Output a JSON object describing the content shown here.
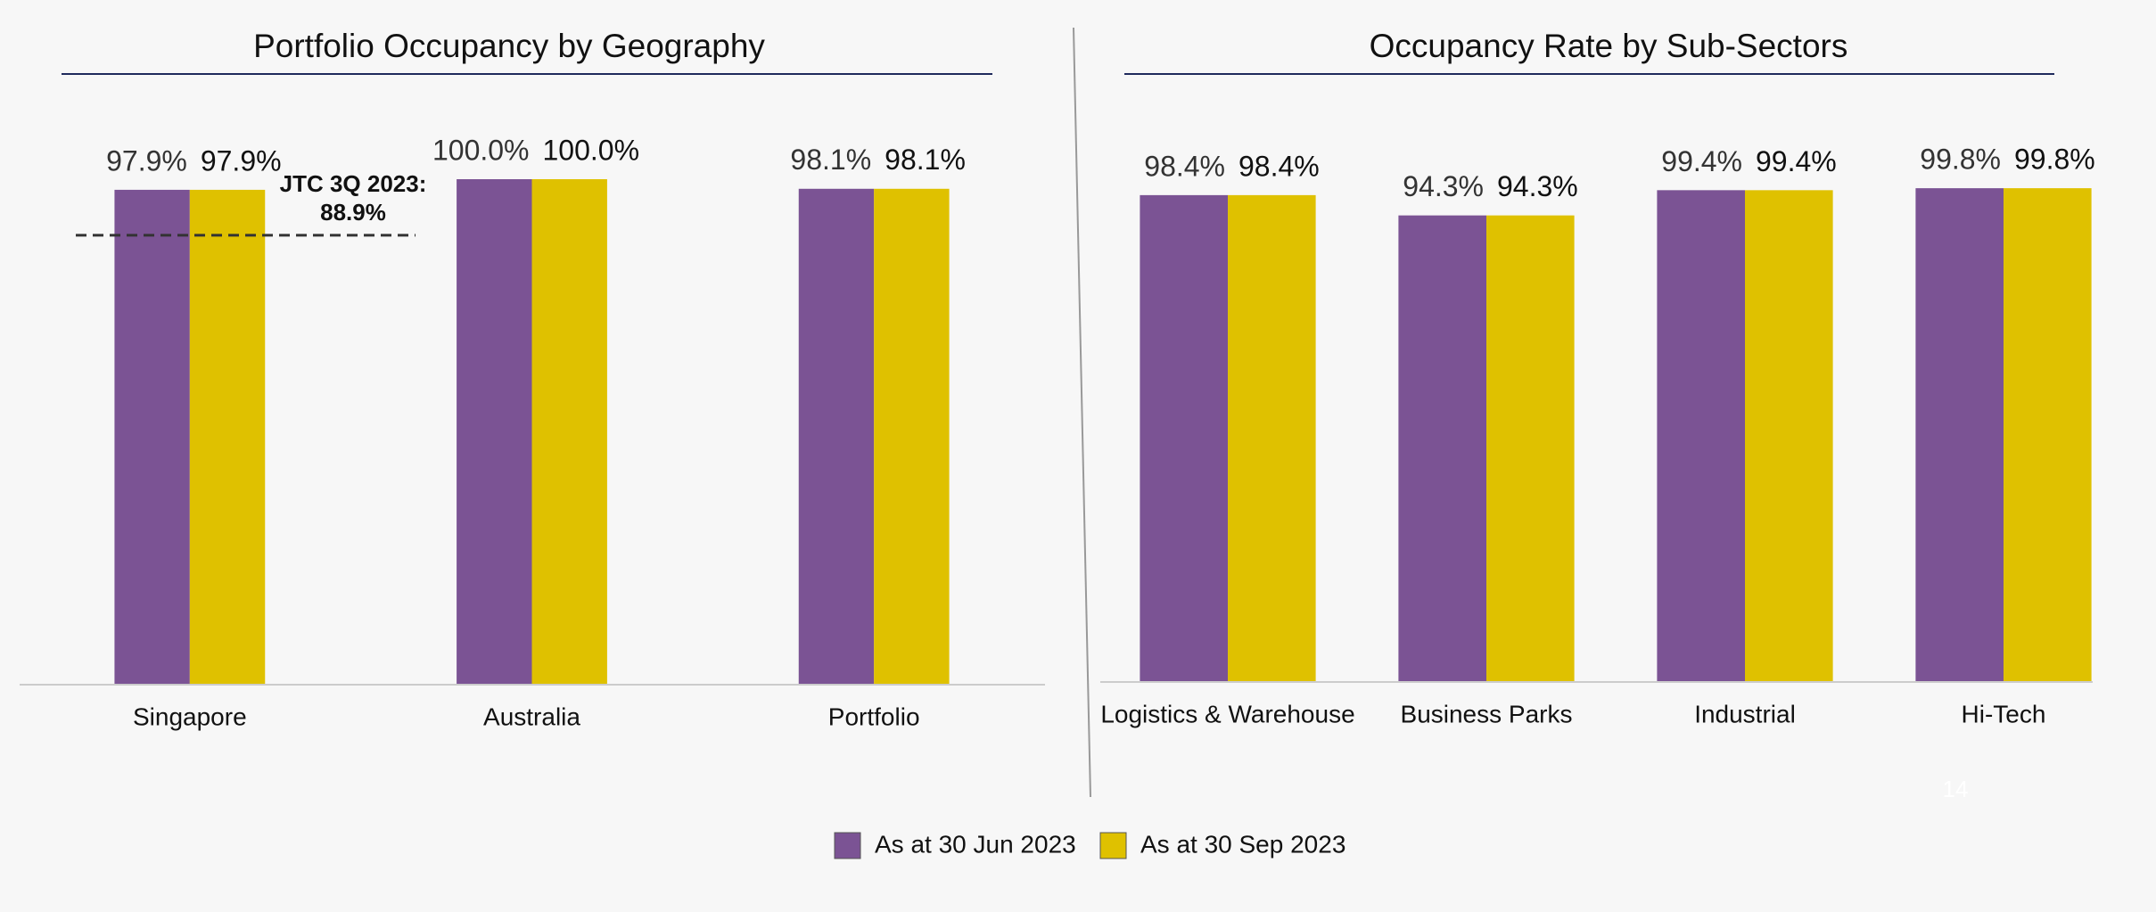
{
  "chart_data": [
    {
      "type": "bar",
      "title": "Portfolio Occupancy by Geography",
      "categories": [
        "Singapore",
        "Australia",
        "Portfolio"
      ],
      "series": [
        {
          "name": "As at 30 Jun 2023",
          "color": "#7b5394",
          "values": [
            97.9,
            100.0,
            98.1
          ],
          "value_labels": [
            "97.9%",
            "100.0%",
            "98.1%"
          ]
        },
        {
          "name": "As at 30 Sep 2023",
          "color": "#dfc100",
          "values": [
            97.9,
            100.0,
            98.1
          ],
          "value_labels": [
            "97.9%",
            "100.0%",
            "98.1%"
          ]
        }
      ],
      "ylim": [
        0,
        100
      ],
      "annotation": {
        "text": "JTC 3Q 2023:",
        "value": 88.9,
        "label": "88.9%"
      }
    },
    {
      "type": "bar",
      "title": "Occupancy Rate by Sub-Sectors",
      "categories": [
        "Logistics & Warehouse",
        "Business Parks",
        "Industrial",
        "Hi-Tech"
      ],
      "series": [
        {
          "color": "#7b5394",
          "values": [
            98.4,
            94.3,
            99.4,
            99.8
          ],
          "value_labels": [
            "98.4%",
            "94.3%",
            "99.4%",
            "99.8%"
          ]
        },
        {
          "color": "#dfc100",
          "values": [
            98.4,
            94.3,
            99.4,
            99.8
          ],
          "value_labels": [
            "98.4%",
            "94.3%",
            "99.4%",
            "99.8%"
          ]
        }
      ],
      "ylim": [
        0,
        100
      ]
    }
  ],
  "page_number": "14"
}
